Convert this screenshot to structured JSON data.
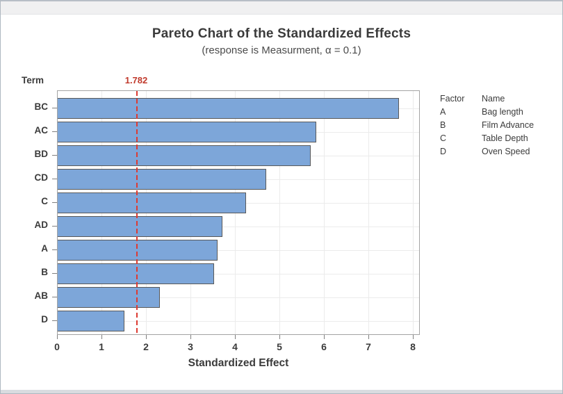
{
  "chart": {
    "title": "Pareto Chart of the Standardized Effects",
    "subtitle": "(response is Measurment, α = 0.1)",
    "y_axis_label": "Term",
    "x_axis_label": "Standardized Effect",
    "reference_line_label": "1.782"
  },
  "chart_data": {
    "type": "bar",
    "orientation": "horizontal",
    "title": "Pareto Chart of the Standardized Effects",
    "subtitle": "(response is Measurment, α = 0.1)",
    "xlabel": "Standardized Effect",
    "ylabel": "Term",
    "categories": [
      "BC",
      "AC",
      "BD",
      "CD",
      "C",
      "AD",
      "A",
      "B",
      "AB",
      "D"
    ],
    "values": [
      7.67,
      5.81,
      5.69,
      4.69,
      4.23,
      3.7,
      3.59,
      3.52,
      2.3,
      1.5
    ],
    "reference_line": 1.782,
    "xlim": [
      0,
      8
    ],
    "xticks": [
      0,
      1,
      2,
      3,
      4,
      5,
      6,
      7,
      8
    ],
    "grid": true,
    "legend_position": "right",
    "bar_color": "#7DA6D9",
    "bar_border_color": "#595959",
    "reference_line_color": "#DD3B32",
    "reference_label_color": "#C0392B"
  },
  "legend": {
    "header": {
      "factor": "Factor",
      "name": "Name"
    },
    "rows": [
      {
        "factor": "A",
        "name": "Bag length"
      },
      {
        "factor": "B",
        "name": "Film Advance"
      },
      {
        "factor": "C",
        "name": "Table Depth"
      },
      {
        "factor": "D",
        "name": "Oven Speed"
      }
    ]
  }
}
